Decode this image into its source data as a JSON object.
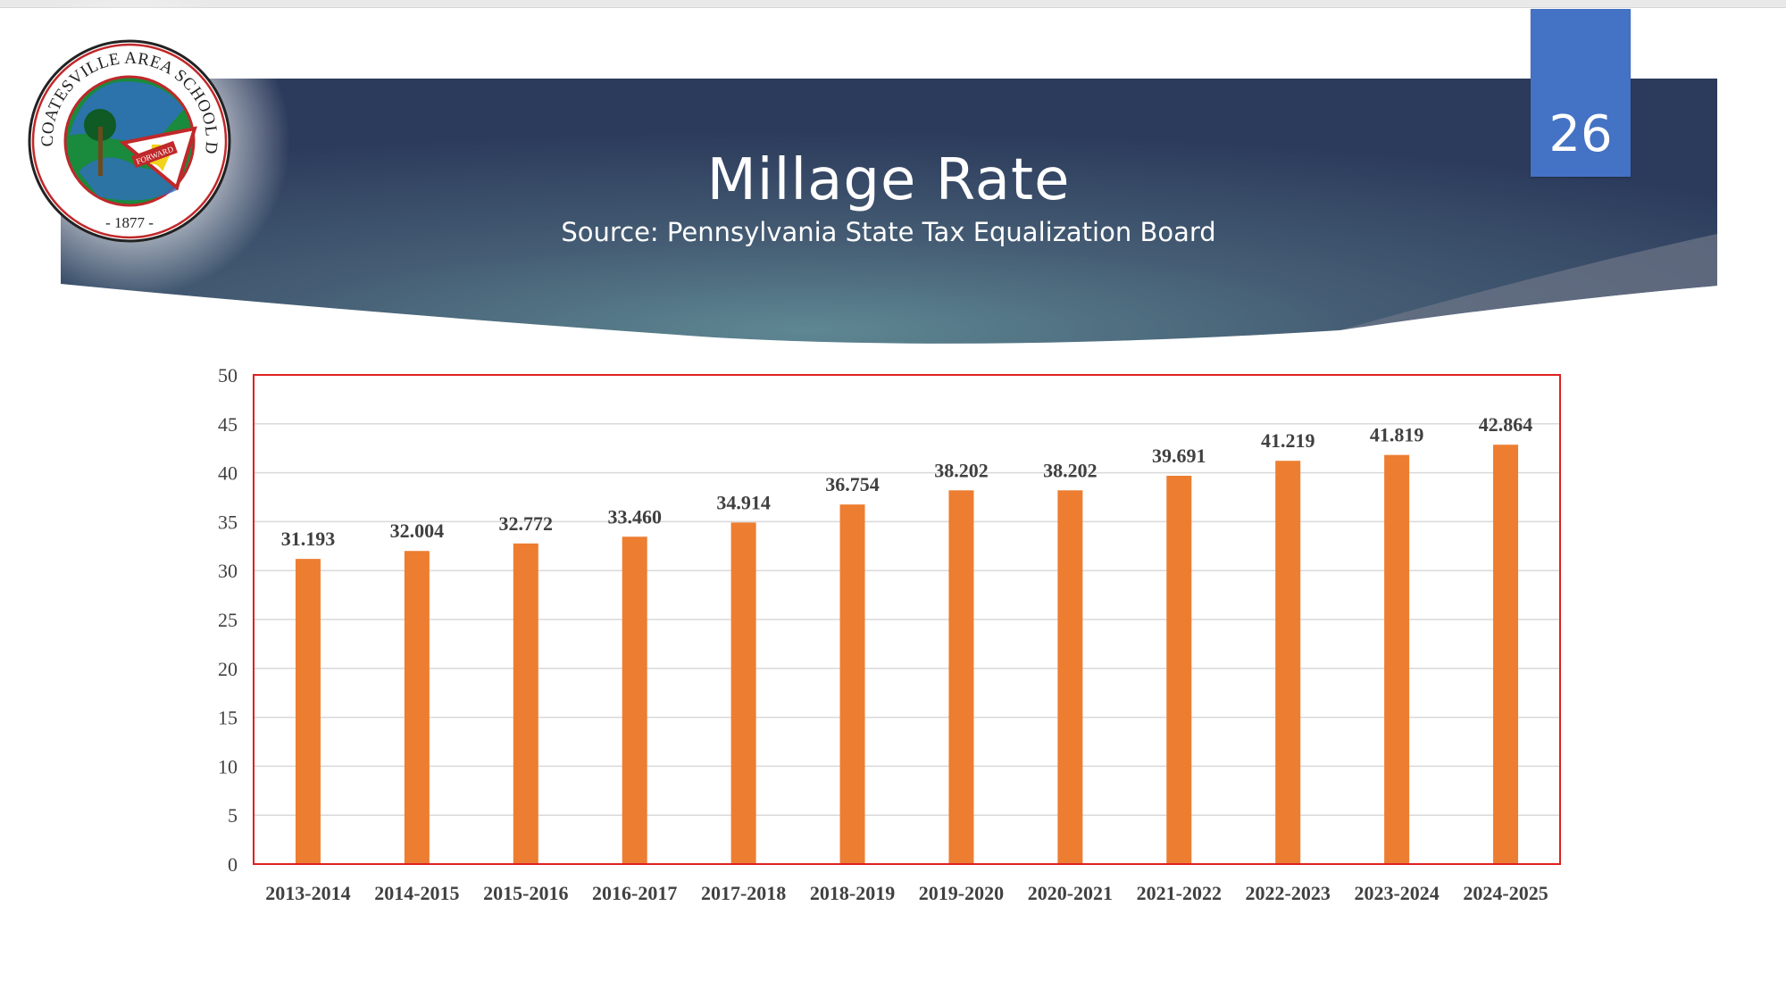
{
  "slide": {
    "title": "Millage Rate",
    "subtitle": "Source: Pennsylvania State Tax Equalization Board",
    "page_number": "26"
  },
  "logo": {
    "ring_text": "COATESVILLE AREA SCHOOL DISTRICT",
    "year_text": "- 1877 -",
    "banner_text": "FORWARD"
  },
  "colors": {
    "bar": "#ed7d31",
    "plot_border": "#e02020",
    "gridline": "#d9d9d9",
    "badge": "#4472c4"
  },
  "chart_data": {
    "type": "bar",
    "title": "",
    "xlabel": "",
    "ylabel": "",
    "categories": [
      "2013-2014",
      "2014-2015",
      "2015-2016",
      "2016-2017",
      "2017-2018",
      "2018-2019",
      "2019-2020",
      "2020-2021",
      "2021-2022",
      "2022-2023",
      "2023-2024",
      "2024-2025"
    ],
    "values": [
      31.193,
      32.004,
      32.772,
      33.46,
      34.914,
      36.754,
      38.202,
      38.202,
      39.691,
      41.219,
      41.819,
      42.864
    ],
    "value_labels": [
      "31.193",
      "32.004",
      "32.772",
      "33.460",
      "34.914",
      "36.754",
      "38.202",
      "38.202",
      "39.691",
      "41.219",
      "41.819",
      "42.864"
    ],
    "ylim": [
      0,
      50
    ],
    "yticks": [
      "0",
      "5",
      "10",
      "15",
      "20",
      "25",
      "30",
      "35",
      "40",
      "45",
      "50"
    ],
    "grid": true,
    "legend": "none"
  }
}
